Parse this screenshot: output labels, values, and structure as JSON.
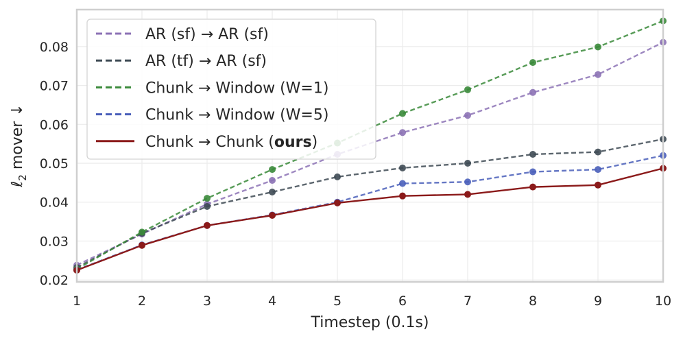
{
  "chart_data": {
    "type": "line",
    "title": "",
    "xlabel": "Timestep (0.1s)",
    "ylabel_var": "ℓ",
    "ylabel_sub": "2",
    "ylabel_rest": " mover ↓",
    "x": [
      1,
      2,
      3,
      4,
      5,
      6,
      7,
      8,
      9,
      10
    ],
    "xlim": [
      1,
      10
    ],
    "ylim": [
      0.0195,
      0.0895
    ],
    "yticks": [
      0.02,
      0.03,
      0.04,
      0.05,
      0.06,
      0.07,
      0.08
    ],
    "ytick_labels": [
      "0.02",
      "0.03",
      "0.04",
      "0.05",
      "0.06",
      "0.07",
      "0.08"
    ],
    "xtick_labels": [
      "1",
      "2",
      "3",
      "4",
      "5",
      "6",
      "7",
      "8",
      "9",
      "10"
    ],
    "grid": true,
    "legend_position": "upper left",
    "series": [
      {
        "name": "AR (sf) → AR (sf)",
        "legend_parts": [
          {
            "text": "AR (sf) → AR (sf)",
            "bold": false
          }
        ],
        "color": "#8c72b5",
        "style": "dashed",
        "values": [
          0.0238,
          0.0318,
          0.0395,
          0.0456,
          0.0523,
          0.0579,
          0.0623,
          0.0682,
          0.0728,
          0.0811
        ]
      },
      {
        "name": "AR (tf) → AR (sf)",
        "legend_parts": [
          {
            "text": "AR (tf) → AR (sf)",
            "bold": false
          }
        ],
        "color": "#3e4a54",
        "style": "dashed",
        "values": [
          0.0232,
          0.032,
          0.0389,
          0.0426,
          0.0465,
          0.0488,
          0.05,
          0.0523,
          0.0529,
          0.0562
        ]
      },
      {
        "name": "Chunk → Window (W=1)",
        "legend_parts": [
          {
            "text": "Chunk → Window (W=1)",
            "bold": false
          }
        ],
        "color": "#3a8a3a",
        "style": "dashed",
        "values": [
          0.0228,
          0.0323,
          0.041,
          0.0484,
          0.0552,
          0.0628,
          0.0689,
          0.0759,
          0.0799,
          0.0866
        ]
      },
      {
        "name": "Chunk → Window (W=5)",
        "legend_parts": [
          {
            "text": "Chunk → Window (W=5)",
            "bold": false
          }
        ],
        "color": "#4a5fba",
        "style": "dashed",
        "values": [
          0.0226,
          0.029,
          0.034,
          0.0367,
          0.04,
          0.0448,
          0.0452,
          0.0478,
          0.0484,
          0.052
        ]
      },
      {
        "name": "Chunk → Chunk (ours)",
        "legend_parts": [
          {
            "text": "Chunk → Chunk (",
            "bold": false
          },
          {
            "text": "ours",
            "bold": true
          },
          {
            "text": ")",
            "bold": false
          }
        ],
        "color": "#8b1a1a",
        "style": "solid",
        "values": [
          0.0225,
          0.0289,
          0.034,
          0.0366,
          0.0398,
          0.0416,
          0.042,
          0.0439,
          0.0444,
          0.0487
        ]
      }
    ]
  }
}
